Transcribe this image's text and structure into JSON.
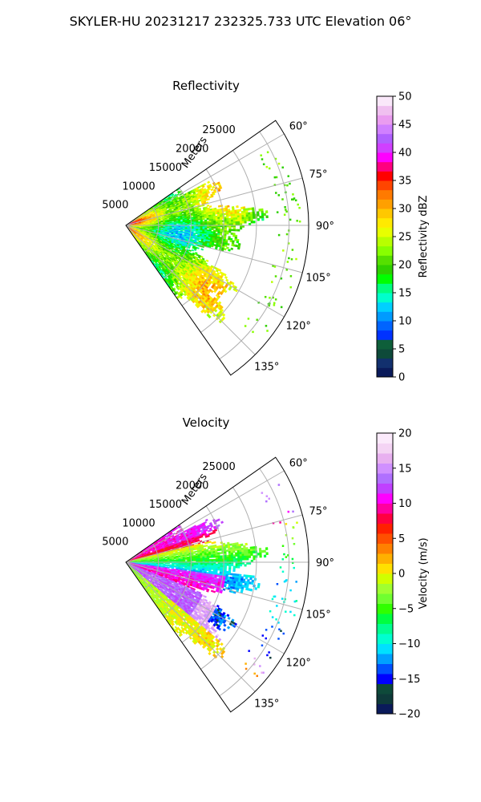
{
  "figure": {
    "suptitle": "SKYLER-HU  20231217  232325.733 UTC Elevation 06°"
  },
  "chart_data": [
    {
      "type": "heatmap",
      "subtype": "polar-sector",
      "title": "Reflectivity",
      "radial_axis_label": "Meters",
      "radial_ticks": [
        5000,
        10000,
        15000,
        20000,
        25000
      ],
      "radial_tick_labels": [
        "5000",
        "10000",
        "15000",
        "20000",
        "25000"
      ],
      "angular_ticks": [
        60,
        75,
        90,
        105,
        120,
        135
      ],
      "angular_tick_labels": [
        "60°",
        "75°",
        "90°",
        "105°",
        "120°",
        "135°"
      ],
      "theta_range": [
        55,
        145
      ],
      "r_max": 28000,
      "grid": true,
      "colorbar": {
        "label": "Reflectivity dBZ",
        "min": 0,
        "max": 50,
        "ticks": [
          0,
          5,
          10,
          15,
          20,
          25,
          30,
          35,
          40,
          45,
          50
        ],
        "tick_labels": [
          "0",
          "5",
          "10",
          "15",
          "20",
          "25",
          "30",
          "35",
          "40",
          "45",
          "50"
        ],
        "colors": [
          "#0a1a5a",
          "#12306e",
          "#0e4a3a",
          "#0e5f3a",
          "#0032ff",
          "#0064ff",
          "#009bff",
          "#00d0ff",
          "#00ffcc",
          "#00ff80",
          "#00ff00",
          "#2ed000",
          "#55e000",
          "#88ff00",
          "#b8ff00",
          "#e8ff00",
          "#ffea00",
          "#ffc800",
          "#ffa000",
          "#ff7a00",
          "#ff4500",
          "#ff0000",
          "#ff0080",
          "#ff00ff",
          "#d040ff",
          "#b060ff",
          "#d080ff",
          "#ea9cf0",
          "#f0c0f0",
          "#fae8fa"
        ]
      }
    },
    {
      "type": "heatmap",
      "subtype": "polar-sector",
      "title": "Velocity",
      "radial_axis_label": "Meters",
      "radial_ticks": [
        5000,
        10000,
        15000,
        20000,
        25000
      ],
      "radial_tick_labels": [
        "5000",
        "10000",
        "15000",
        "20000",
        "25000"
      ],
      "angular_ticks": [
        60,
        75,
        90,
        105,
        120,
        135
      ],
      "angular_tick_labels": [
        "60°",
        "75°",
        "90°",
        "105°",
        "120°",
        "135°"
      ],
      "theta_range": [
        55,
        145
      ],
      "r_max": 28000,
      "grid": true,
      "colorbar": {
        "label": "Velocity (m/s)",
        "min": -20,
        "max": 20,
        "ticks": [
          -20,
          -15,
          -10,
          -5,
          0,
          5,
          10,
          15,
          20
        ],
        "tick_labels": [
          "−20",
          "−15",
          "−10",
          "−5",
          "0",
          "5",
          "10",
          "15",
          "20"
        ],
        "colors": [
          "#0a1a5a",
          "#0e3a3a",
          "#0e4a3a",
          "#0000ff",
          "#0050ff",
          "#00a0ff",
          "#00e0ff",
          "#00ffd0",
          "#00ff90",
          "#00ff40",
          "#30ff00",
          "#70ff30",
          "#a0ff30",
          "#d0ff00",
          "#ffe000",
          "#ffb000",
          "#ff8000",
          "#ff5000",
          "#ff2000",
          "#ff0040",
          "#ff00a0",
          "#ff00ff",
          "#c040ff",
          "#b070ff",
          "#d090ff",
          "#e8b0f0",
          "#f4d4f4",
          "#fbeafb"
        ]
      }
    }
  ]
}
